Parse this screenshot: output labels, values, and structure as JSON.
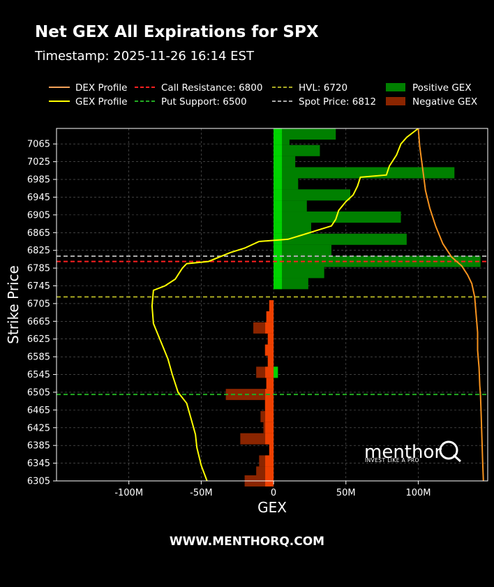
{
  "chart_data": {
    "type": "bar",
    "orientation": "horizontal",
    "title": "Net GEX All Expirations for SPX",
    "subtitle": "Timestamp: 2025-11-26 16:14 EST",
    "xlabel": "GEX",
    "ylabel": "Strike Price",
    "xlim": [
      -150000000,
      148000000
    ],
    "ylim": [
      6305,
      7100
    ],
    "x_ticks": [
      -100000000,
      -50000000,
      0,
      50000000,
      100000000
    ],
    "x_tick_labels": [
      "-100M",
      "-50M",
      "0",
      "50M",
      "100M"
    ],
    "y_ticks": [
      7065,
      7025,
      6985,
      6945,
      6905,
      6865,
      6825,
      6785,
      6745,
      6705,
      6665,
      6625,
      6585,
      6545,
      6505,
      6465,
      6425,
      6385,
      6345,
      6305
    ],
    "grid": true,
    "legend": {
      "placement": "top",
      "entries": [
        {
          "label": "DEX Profile",
          "kind": "line",
          "color": "#f4a259",
          "dash": "solid"
        },
        {
          "label": "GEX Profile",
          "kind": "line",
          "color": "#ffff00",
          "dash": "solid"
        },
        {
          "label": "Call Resistance: 6800",
          "kind": "line",
          "color": "#ff2020",
          "dash": "dashed"
        },
        {
          "label": "Put Support: 6500",
          "kind": "line",
          "color": "#22aa22",
          "dash": "dashed"
        },
        {
          "label": "HVL: 6720",
          "kind": "line",
          "color": "#aaaa22",
          "dash": "dashed"
        },
        {
          "label": "Spot Price: 6812",
          "kind": "line",
          "color": "#aaaaaa",
          "dash": "dashed"
        },
        {
          "label": "Positive GEX",
          "kind": "patch",
          "color": "#008000"
        },
        {
          "label": "Negative GEX",
          "kind": "patch",
          "color": "#8b2500"
        }
      ]
    },
    "reference_lines": [
      {
        "name": "call-resistance",
        "y": 6800,
        "color": "#ff2020"
      },
      {
        "name": "put-support",
        "y": 6500,
        "color": "#22aa22"
      },
      {
        "name": "hvl",
        "y": 6720,
        "color": "#aaaa22"
      },
      {
        "name": "spot-price",
        "y": 6812,
        "color": "#aaaaaa"
      }
    ],
    "colors": {
      "positive_major": "#008000",
      "positive_minor": "#00e000",
      "negative_major": "#8b2500",
      "negative_minor": "#ff4500",
      "gex_profile": "#ffff00",
      "dex_profile": "#f7931e",
      "grid": "#666666"
    },
    "series": [
      {
        "name": "Positive GEX",
        "bars": [
          {
            "strike": 7100,
            "value": 43000000
          },
          {
            "strike": 7075,
            "value": 11000000
          },
          {
            "strike": 7050,
            "value": 32000000
          },
          {
            "strike": 7025,
            "value": 15000000
          },
          {
            "strike": 7000,
            "value": 125000000
          },
          {
            "strike": 6975,
            "value": 17000000
          },
          {
            "strike": 6950,
            "value": 53000000
          },
          {
            "strike": 6925,
            "value": 23000000
          },
          {
            "strike": 6900,
            "value": 88000000
          },
          {
            "strike": 6875,
            "value": 26000000
          },
          {
            "strike": 6850,
            "value": 92000000
          },
          {
            "strike": 6825,
            "value": 40000000
          },
          {
            "strike": 6800,
            "value": 143000000
          },
          {
            "strike": 6775,
            "value": 35000000
          },
          {
            "strike": 6750,
            "value": 24000000
          },
          {
            "strike": 6550,
            "value": 3000000
          }
        ]
      },
      {
        "name": "Negative GEX",
        "bars": [
          {
            "strike": 6700,
            "value": -3000000
          },
          {
            "strike": 6675,
            "value": -5000000
          },
          {
            "strike": 6650,
            "value": -14000000
          },
          {
            "strike": 6625,
            "value": -4000000
          },
          {
            "strike": 6600,
            "value": -6000000
          },
          {
            "strike": 6575,
            "value": -4000000
          },
          {
            "strike": 6550,
            "value": -12000000
          },
          {
            "strike": 6525,
            "value": -5000000
          },
          {
            "strike": 6500,
            "value": -33000000
          },
          {
            "strike": 6475,
            "value": -6000000
          },
          {
            "strike": 6450,
            "value": -9000000
          },
          {
            "strike": 6425,
            "value": -7000000
          },
          {
            "strike": 6400,
            "value": -23000000
          },
          {
            "strike": 6375,
            "value": -3000000
          },
          {
            "strike": 6350,
            "value": -10000000
          },
          {
            "strike": 6325,
            "value": -12000000
          },
          {
            "strike": 6305,
            "value": -20000000
          }
        ]
      },
      {
        "name": "GEX Profile",
        "points": [
          {
            "x": 100000000,
            "y": 7100
          },
          {
            "x": 92000000,
            "y": 7080
          },
          {
            "x": 88000000,
            "y": 7065
          },
          {
            "x": 85000000,
            "y": 7040
          },
          {
            "x": 80000000,
            "y": 7015
          },
          {
            "x": 78000000,
            "y": 6995
          },
          {
            "x": 60000000,
            "y": 6990
          },
          {
            "x": 58000000,
            "y": 6970
          },
          {
            "x": 55000000,
            "y": 6950
          },
          {
            "x": 50000000,
            "y": 6935
          },
          {
            "x": 45000000,
            "y": 6915
          },
          {
            "x": 43000000,
            "y": 6895
          },
          {
            "x": 40000000,
            "y": 6880
          },
          {
            "x": 30000000,
            "y": 6870
          },
          {
            "x": 20000000,
            "y": 6860
          },
          {
            "x": 10000000,
            "y": 6850
          },
          {
            "x": -10000000,
            "y": 6845
          },
          {
            "x": -20000000,
            "y": 6830
          },
          {
            "x": -30000000,
            "y": 6820
          },
          {
            "x": -45000000,
            "y": 6800
          },
          {
            "x": -60000000,
            "y": 6795
          },
          {
            "x": -63000000,
            "y": 6785
          },
          {
            "x": -68000000,
            "y": 6760
          },
          {
            "x": -75000000,
            "y": 6745
          },
          {
            "x": -83000000,
            "y": 6735
          },
          {
            "x": -84000000,
            "y": 6700
          },
          {
            "x": -83000000,
            "y": 6660
          },
          {
            "x": -78000000,
            "y": 6620
          },
          {
            "x": -73000000,
            "y": 6580
          },
          {
            "x": -70000000,
            "y": 6545
          },
          {
            "x": -66000000,
            "y": 6505
          },
          {
            "x": -60000000,
            "y": 6480
          },
          {
            "x": -57000000,
            "y": 6445
          },
          {
            "x": -54000000,
            "y": 6410
          },
          {
            "x": -53000000,
            "y": 6380
          },
          {
            "x": -50000000,
            "y": 6340
          },
          {
            "x": -46000000,
            "y": 6305
          }
        ]
      },
      {
        "name": "DEX Profile",
        "points": [
          {
            "x": 100000000,
            "y": 7100
          },
          {
            "x": 101000000,
            "y": 7060
          },
          {
            "x": 103000000,
            "y": 7010
          },
          {
            "x": 105000000,
            "y": 6960
          },
          {
            "x": 108000000,
            "y": 6920
          },
          {
            "x": 112000000,
            "y": 6880
          },
          {
            "x": 117000000,
            "y": 6840
          },
          {
            "x": 123000000,
            "y": 6810
          },
          {
            "x": 130000000,
            "y": 6790
          },
          {
            "x": 134000000,
            "y": 6770
          },
          {
            "x": 137000000,
            "y": 6750
          },
          {
            "x": 139000000,
            "y": 6720
          },
          {
            "x": 140000000,
            "y": 6680
          },
          {
            "x": 141000000,
            "y": 6640
          },
          {
            "x": 141000000,
            "y": 6600
          },
          {
            "x": 142000000,
            "y": 6560
          },
          {
            "x": 142500000,
            "y": 6520
          },
          {
            "x": 143000000,
            "y": 6500
          },
          {
            "x": 143500000,
            "y": 6450
          },
          {
            "x": 144000000,
            "y": 6400
          },
          {
            "x": 144500000,
            "y": 6350
          },
          {
            "x": 145000000,
            "y": 6305
          }
        ]
      }
    ]
  },
  "watermark": {
    "brand": "menthor",
    "letter": "Q",
    "tagline": "INVEST LIKE A PRO"
  },
  "footer": {
    "text": "WWW.MENTHORQ.COM"
  }
}
